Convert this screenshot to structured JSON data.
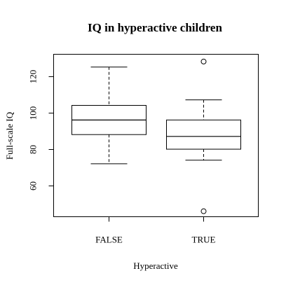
{
  "chart_data": {
    "type": "box",
    "title": "IQ in hyperactive children",
    "xlabel": "Hyperactive",
    "ylabel": "Full-scale IQ",
    "ylim": [
      43,
      132
    ],
    "yticks": [
      60,
      80,
      100,
      120
    ],
    "grid": false,
    "categories": [
      "FALSE",
      "TRUE"
    ],
    "boxes": [
      {
        "category": "FALSE",
        "min": 72,
        "q1": 88,
        "median": 96,
        "q3": 104,
        "max": 125,
        "outliers": []
      },
      {
        "category": "TRUE",
        "min": 74,
        "q1": 80,
        "median": 87,
        "q3": 96,
        "max": 107,
        "outliers": [
          128,
          46
        ]
      }
    ]
  }
}
